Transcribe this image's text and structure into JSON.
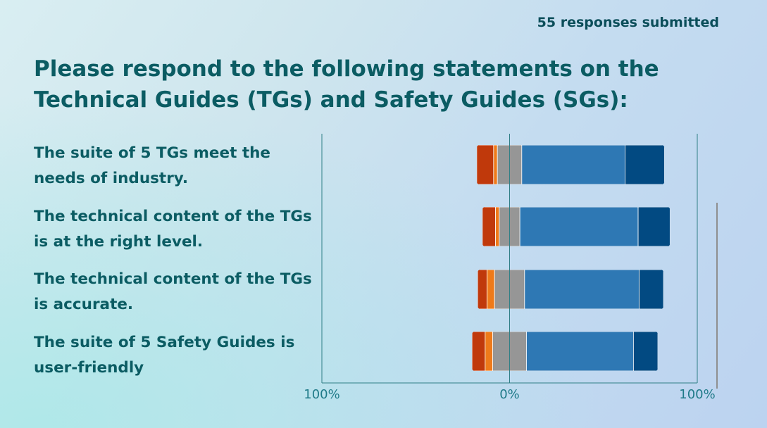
{
  "header": {
    "responses": "55 responses submitted"
  },
  "title": "Please respond to the following statements on the Technical Guides (TGs) and Safety Guides (SGs):",
  "chart_data": {
    "type": "bar",
    "orientation": "horizontal",
    "stacked": "diverging",
    "title": "",
    "xlabel": "",
    "ylabel": "",
    "xlim": [
      -100,
      100
    ],
    "xticks": [
      "100%",
      "0%",
      "100%"
    ],
    "categories": [
      "The suite of 5 TGs meet the needs of industry.",
      "The technical content of the TGs is at the right level.",
      "The technical content of the TGs is accurate.",
      "The suite of 5 Safety Guides is user-friendly"
    ],
    "series": [
      {
        "color": "#c0390b",
        "values": [
          9,
          7,
          5,
          7
        ]
      },
      {
        "color": "#ee7a1a",
        "values": [
          2,
          2,
          4,
          4
        ]
      },
      {
        "color": "#969696",
        "values": [
          13,
          11,
          16,
          18
        ]
      },
      {
        "color": "#2e78b4",
        "values": [
          55,
          63,
          61,
          57
        ]
      },
      {
        "color": "#024a82",
        "values": [
          21,
          17,
          13,
          13
        ]
      }
    ],
    "neutral_series_index": 2
  }
}
